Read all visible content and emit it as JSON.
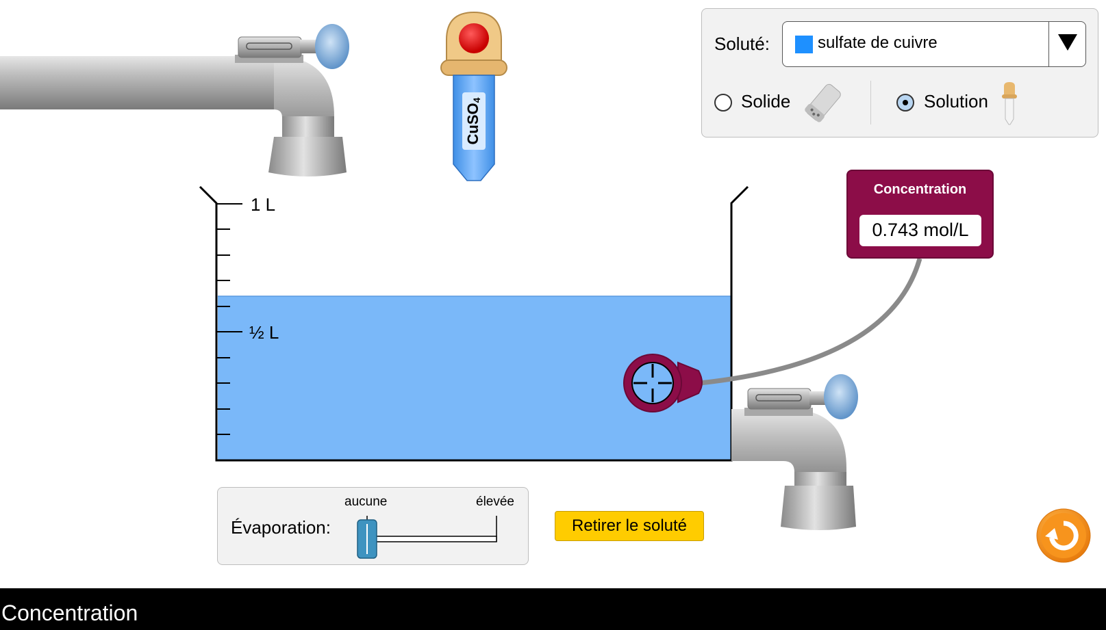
{
  "solute_panel": {
    "label": "Soluté:",
    "selected_solute": "sulfate de cuivre",
    "selected_color": "#1e90ff",
    "solid_label": "Solide",
    "solution_label": "Solution",
    "selected_form": "solution"
  },
  "dropper": {
    "label": "CuSO",
    "subscript": "4"
  },
  "beaker": {
    "top_label": "1 L",
    "half_label": "½ L",
    "fill_level_liters": 0.64
  },
  "meter": {
    "title": "Concentration",
    "value": "0.743 mol/L"
  },
  "evaporation": {
    "label": "Évaporation:",
    "min_label": "aucune",
    "max_label": "élevée",
    "level": 0
  },
  "remove_solute_label": "Retirer le soluté",
  "footer": {
    "title": "Concentration"
  },
  "icons": {
    "reset": "reset-icon",
    "dropdown": "triangle-down-icon",
    "shaker": "shaker-icon",
    "dropper": "dropper-icon",
    "probe": "crosshair-probe-icon"
  },
  "colors": {
    "solution": "#7ab8f9",
    "meter": "#8c0d48",
    "button": "#ffcc00",
    "reset": "#f7941d"
  }
}
